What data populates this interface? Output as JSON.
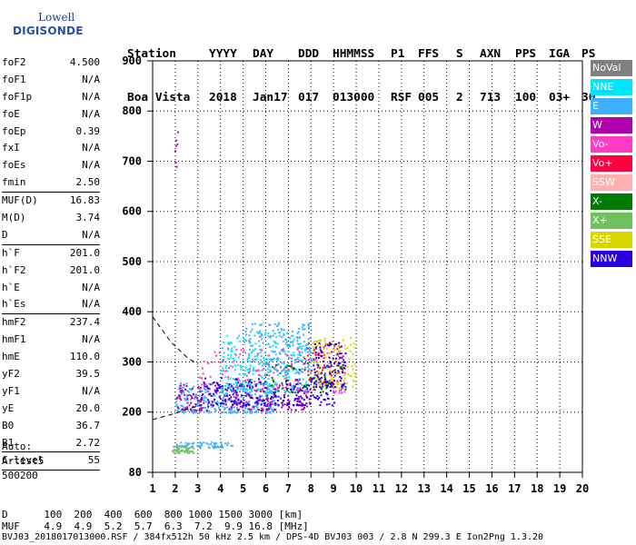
{
  "logo": {
    "line1": "Lowell",
    "line2": "DIGISONDE"
  },
  "header": {
    "labels": [
      "Station",
      "YYYY",
      "DAY",
      "DDD",
      "HHMMSS",
      "P1",
      "FFS",
      "S",
      "AXN",
      "PPS",
      "IGA",
      "PS"
    ],
    "values": [
      "Boa Vista",
      "2018",
      "Jan17",
      "017",
      "013000",
      "RSF",
      "005",
      "2",
      "713",
      "100",
      "03+",
      "30"
    ]
  },
  "params": [
    {
      "name": "foF2",
      "value": "4.500"
    },
    {
      "name": "foF1",
      "value": "N/A"
    },
    {
      "name": "foF1p",
      "value": "N/A"
    },
    {
      "name": "foE",
      "value": "N/A"
    },
    {
      "name": "foEp",
      "value": "0.39"
    },
    {
      "name": "fxI",
      "value": "N/A"
    },
    {
      "name": "foEs",
      "value": "N/A"
    },
    {
      "name": "fmin",
      "value": "2.50"
    },
    {
      "name": "MUF(D)",
      "value": "16.83"
    },
    {
      "name": "M(D)",
      "value": "3.74"
    },
    {
      "name": "D",
      "value": "N/A"
    },
    {
      "name": "h`F",
      "value": "201.0"
    },
    {
      "name": "h`F2",
      "value": "201.0"
    },
    {
      "name": "h`E",
      "value": "N/A"
    },
    {
      "name": "h`Es",
      "value": "N/A"
    },
    {
      "name": "hmF2",
      "value": "237.4"
    },
    {
      "name": "hmF1",
      "value": "N/A"
    },
    {
      "name": "hmE",
      "value": "110.0"
    },
    {
      "name": "yF2",
      "value": "39.5"
    },
    {
      "name": "yF1",
      "value": "N/A"
    },
    {
      "name": "yE",
      "value": "20.0"
    },
    {
      "name": "B0",
      "value": "36.7"
    },
    {
      "name": "B1",
      "value": "2.72"
    },
    {
      "name": "C-level",
      "value": "55"
    }
  ],
  "auto": {
    "line1": "Auto:",
    "line2": "Artist5",
    "line3": "500200"
  },
  "footer": {
    "d_label": "D",
    "d_values": "100  200  400  600  800 1000 1500 3000 [km]",
    "muf_label": "MUF",
    "muf_values": "4.9  4.9  5.2  5.7  6.3  7.2  9.9 16.8 [MHz]",
    "file_line": "BVJ03_2018017013000.RSF / 384fx512h 50 kHz 2.5 km / DPS-4D BVJ03 003 / 2.8 N 299.3 E Ion2Png 1.3.20"
  },
  "legend": [
    {
      "label": "NoVal",
      "color": "#808080"
    },
    {
      "label": "NNE",
      "color": "#00e5ff"
    },
    {
      "label": "E",
      "color": "#3fb0ff"
    },
    {
      "label": "W",
      "color": "#b000b0"
    },
    {
      "label": "Vo-",
      "color": "#ff3cc8"
    },
    {
      "label": "Vo+",
      "color": "#ff0040"
    },
    {
      "label": "SSW",
      "color": "#ffb0b0"
    },
    {
      "label": "X-",
      "color": "#007a00"
    },
    {
      "label": "X+",
      "color": "#70c060"
    },
    {
      "label": "SSE",
      "color": "#d8d800"
    },
    {
      "label": "NNW",
      "color": "#2a00e0"
    }
  ],
  "chart_data": {
    "type": "scatter",
    "xlim": [
      1,
      20
    ],
    "ylim": [
      80,
      900
    ],
    "x_ticks": [
      1,
      2,
      3,
      4,
      5,
      6,
      7,
      8,
      9,
      10,
      11,
      12,
      13,
      14,
      15,
      16,
      17,
      18,
      19,
      20
    ],
    "y_ticks": [
      80,
      200,
      300,
      400,
      500,
      600,
      700,
      800,
      900
    ],
    "grid": true,
    "clusters": [
      {
        "color": "#3fb0ff",
        "x": [
          2.0,
          4.5
        ],
        "y": [
          130,
          142
        ],
        "n": 60
      },
      {
        "color": "#70c060",
        "x": [
          1.8,
          2.8
        ],
        "y": [
          120,
          135
        ],
        "n": 50
      },
      {
        "color": "#3fb0ff",
        "x": [
          2.0,
          6.5
        ],
        "y": [
          200,
          260
        ],
        "n": 350
      },
      {
        "color": "#b000b0",
        "x": [
          2.0,
          8.0
        ],
        "y": [
          205,
          260
        ],
        "n": 220
      },
      {
        "color": "#2a00e0",
        "x": [
          3.0,
          9.0
        ],
        "y": [
          215,
          270
        ],
        "n": 220
      },
      {
        "color": "#00e5ff",
        "x": [
          4.0,
          7.8
        ],
        "y": [
          240,
          360
        ],
        "n": 220
      },
      {
        "color": "#3fb0ff",
        "x": [
          5.0,
          8.0
        ],
        "y": [
          280,
          380
        ],
        "n": 200
      },
      {
        "color": "#ff3cc8",
        "x": [
          3.0,
          9.5
        ],
        "y": [
          240,
          330
        ],
        "n": 120
      },
      {
        "color": "#ff0040",
        "x": [
          7.5,
          9.5
        ],
        "y": [
          260,
          340
        ],
        "n": 60
      },
      {
        "color": "#d8d800",
        "x": [
          8.0,
          10.0
        ],
        "y": [
          250,
          350
        ],
        "n": 120
      },
      {
        "color": "#007a00",
        "x": [
          6.0,
          9.5
        ],
        "y": [
          240,
          300
        ],
        "n": 60
      },
      {
        "color": "#2a00e0",
        "x": [
          8.0,
          9.5
        ],
        "y": [
          250,
          340
        ],
        "n": 100
      },
      {
        "color": "#b000b0",
        "x": [
          1.9,
          2.1
        ],
        "y": [
          690,
          760
        ],
        "n": 8
      }
    ],
    "curves": [
      {
        "style": "dashed",
        "x": [
          1.0,
          1.8,
          2.5,
          3.0
        ],
        "y": [
          390,
          340,
          310,
          295
        ]
      },
      {
        "style": "dashed",
        "x": [
          1.0,
          1.8,
          2.5,
          3.2
        ],
        "y": [
          185,
          195,
          205,
          215
        ]
      }
    ]
  }
}
